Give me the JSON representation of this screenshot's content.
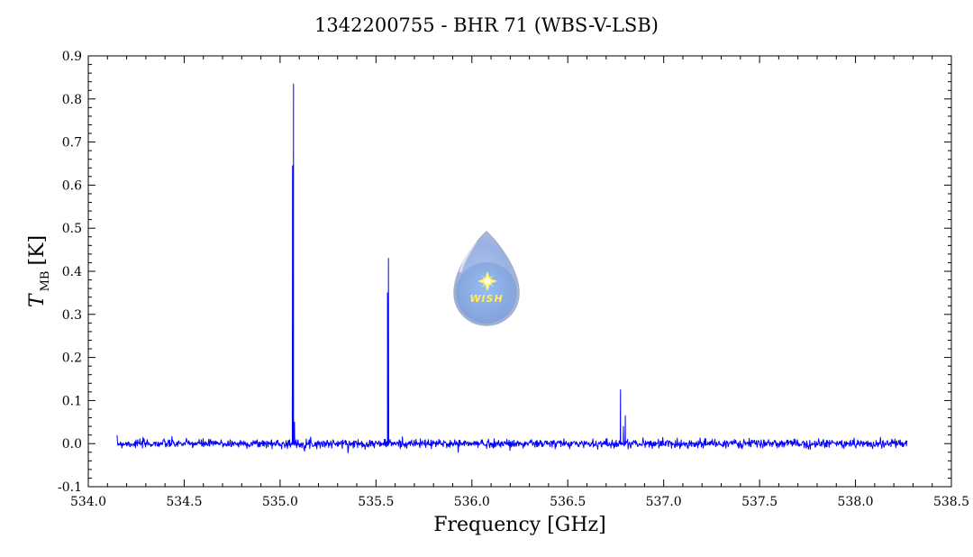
{
  "chart_data": {
    "type": "line",
    "title": "1342200755 - BHR 71 (WBS-V-LSB)",
    "xlabel": "Frequency [GHz]",
    "ylabel": "T",
    "ylabel_sub": "MB",
    "ylabel_unit": "[K]",
    "xlim": [
      534.0,
      538.5
    ],
    "ylim": [
      -0.1,
      0.9
    ],
    "x_ticks": [
      "534.0",
      "534.5",
      "535.0",
      "535.5",
      "536.0",
      "536.5",
      "537.0",
      "537.5",
      "538.0",
      "538.5"
    ],
    "y_ticks": [
      "-0.1",
      "0.0",
      "0.1",
      "0.2",
      "0.3",
      "0.4",
      "0.5",
      "0.6",
      "0.7",
      "0.8",
      "0.9"
    ],
    "grid": false,
    "series": [
      {
        "color": "#0000ff",
        "x_range": [
          534.15,
          538.27
        ],
        "baseline": 0.0,
        "noise_rms": 0.005,
        "peaks": [
          {
            "x": 535.07,
            "y": 0.835
          },
          {
            "x": 535.065,
            "y": 0.645
          },
          {
            "x": 535.075,
            "y": 0.05
          },
          {
            "x": 535.565,
            "y": 0.43
          },
          {
            "x": 535.56,
            "y": 0.35
          },
          {
            "x": 536.775,
            "y": 0.125
          },
          {
            "x": 536.8,
            "y": 0.065
          },
          {
            "x": 536.79,
            "y": 0.04
          }
        ]
      }
    ],
    "logo": {
      "text": "WISH"
    }
  }
}
